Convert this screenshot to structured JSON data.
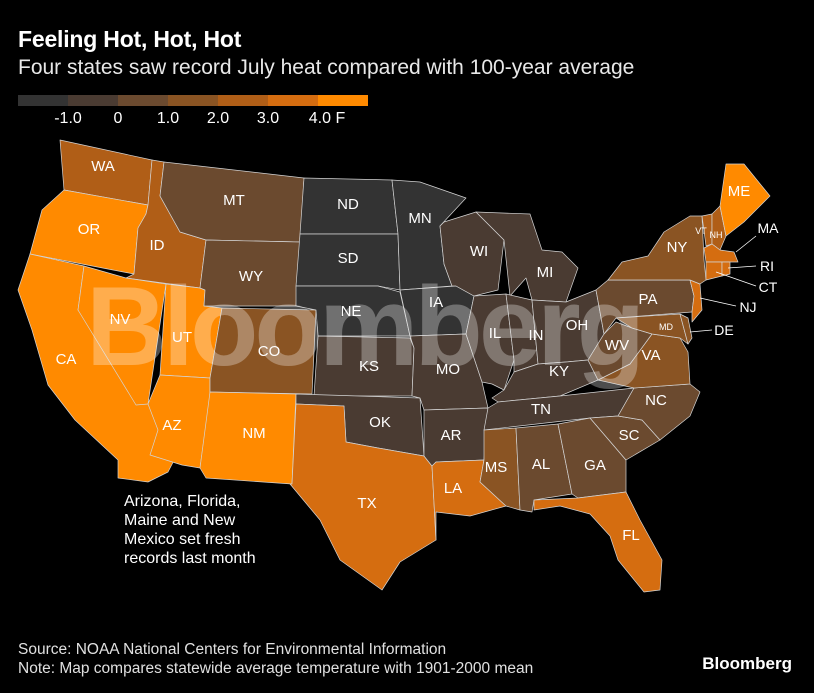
{
  "header": {
    "title": "Feeling Hot, Hot, Hot",
    "subtitle": "Four states saw record July heat compared with 100-year average"
  },
  "legend": {
    "swatches": [
      "#333333",
      "#4a3b32",
      "#6b4a2f",
      "#8a5423",
      "#b05e17",
      "#d56d10",
      "#ff8a00"
    ],
    "labels": [
      "-1.0",
      "0",
      "1.0",
      "2.0",
      "3.0",
      "4.0 F"
    ]
  },
  "colors": {
    "background": "#000000",
    "state_border": "#d4d4d4",
    "accent": "#ff8a00"
  },
  "states": {
    "WA": {
      "label": "WA",
      "color": "#b05e17"
    },
    "OR": {
      "label": "OR",
      "color": "#ff8a00"
    },
    "CA": {
      "label": "CA",
      "color": "#ff8a00"
    },
    "ID": {
      "label": "ID",
      "color": "#b05e17"
    },
    "NV": {
      "label": "NV",
      "color": "#ff8a00"
    },
    "UT": {
      "label": "UT",
      "color": "#ff8a00"
    },
    "AZ": {
      "label": "AZ",
      "color": "#ff8a00"
    },
    "MT": {
      "label": "MT",
      "color": "#6b4a2f"
    },
    "WY": {
      "label": "WY",
      "color": "#6b4a2f"
    },
    "CO": {
      "label": "CO",
      "color": "#8a5423"
    },
    "NM": {
      "label": "NM",
      "color": "#ff8a00"
    },
    "ND": {
      "label": "ND",
      "color": "#333333"
    },
    "SD": {
      "label": "SD",
      "color": "#333333"
    },
    "NE": {
      "label": "NE",
      "color": "#333333"
    },
    "KS": {
      "label": "KS",
      "color": "#4a3b32"
    },
    "OK": {
      "label": "OK",
      "color": "#4a3b32"
    },
    "TX": {
      "label": "TX",
      "color": "#d56d10"
    },
    "MN": {
      "label": "MN",
      "color": "#333333"
    },
    "IA": {
      "label": "IA",
      "color": "#333333"
    },
    "MO": {
      "label": "MO",
      "color": "#4a3b32"
    },
    "AR": {
      "label": "AR",
      "color": "#4a3b32"
    },
    "LA": {
      "label": "LA",
      "color": "#d56d10"
    },
    "WI": {
      "label": "WI",
      "color": "#4a3b32"
    },
    "MI": {
      "label": "MI",
      "color": "#4a3b32"
    },
    "IL": {
      "label": "IL",
      "color": "#4a3b32"
    },
    "IN": {
      "label": "IN",
      "color": "#4a3b32"
    },
    "OH": {
      "label": "OH",
      "color": "#4a3b32"
    },
    "KY": {
      "label": "KY",
      "color": "#4a3b32"
    },
    "TN": {
      "label": "TN",
      "color": "#4a3b32"
    },
    "MS": {
      "label": "MS",
      "color": "#8a5423"
    },
    "AL": {
      "label": "AL",
      "color": "#6b4a2f"
    },
    "GA": {
      "label": "GA",
      "color": "#6b4a2f"
    },
    "FL": {
      "label": "FL",
      "color": "#d56d10"
    },
    "SC": {
      "label": "SC",
      "color": "#6b4a2f"
    },
    "NC": {
      "label": "NC",
      "color": "#6b4a2f"
    },
    "VA": {
      "label": "VA",
      "color": "#8a5423"
    },
    "WV": {
      "label": "WV",
      "color": "#6b4a2f"
    },
    "PA": {
      "label": "PA",
      "color": "#6b4a2f"
    },
    "NY": {
      "label": "NY",
      "color": "#8a5423"
    },
    "ME": {
      "label": "ME",
      "color": "#ff8a00"
    },
    "VT": {
      "label": "VT",
      "color": "#b05e17"
    },
    "NH": {
      "label": "NH",
      "color": "#b05e17"
    },
    "MA": {
      "label": "MA",
      "color": "#d56d10"
    },
    "RI": {
      "label": "RI",
      "color": "#d56d10"
    },
    "CT": {
      "label": "CT",
      "color": "#d56d10"
    },
    "NJ": {
      "label": "NJ",
      "color": "#d56d10"
    },
    "DE": {
      "label": "DE",
      "color": "#8a5423"
    },
    "MD": {
      "label": "MD",
      "color": "#8a5423"
    }
  },
  "annotation": {
    "lines": [
      "Arizona, Florida,",
      "Maine and New",
      "Mexico set fresh",
      "records last month"
    ]
  },
  "watermark": "Bloomberg",
  "footer": {
    "source": "Source: NOAA National Centers for Environmental Information",
    "note": "Note: Map compares statewide average temperature with 1901-2000 mean",
    "brand": "Bloomberg"
  }
}
